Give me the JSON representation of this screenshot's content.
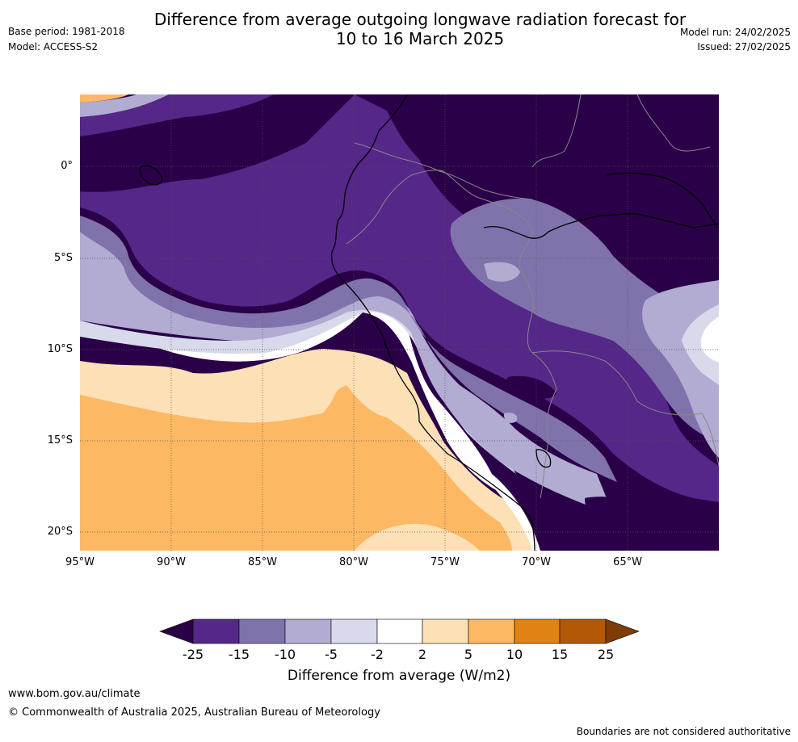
{
  "title": {
    "line1": "Difference from average outgoing longwave radiation forecast for",
    "line2": "10 to 16 March 2025"
  },
  "meta": {
    "base_period": "Base period: 1981-2018",
    "model": "Model: ACCESS-S2",
    "model_run": "Model run: 24/02/2025",
    "issued": "Issued: 27/02/2025"
  },
  "map": {
    "lat_labels": [
      "0°",
      "5°S",
      "10°S",
      "15°S",
      "20°S"
    ],
    "lon_labels": [
      "95°W",
      "90°W",
      "85°W",
      "80°W",
      "75°W",
      "70°W",
      "65°W"
    ],
    "colors": {
      "lt_-25": "#2a0048",
      "-25_-15": "#542788",
      "-15_-10": "#8073ac",
      "-10_-5": "#b2abd2",
      "-5_-2": "#d8daeb",
      "-2_2": "#ffffff",
      "2_5": "#fee0b6",
      "5_10": "#fdb863",
      "10_15": "#e08214",
      "15_25": "#b35806",
      "gt_25": "#7f3b08",
      "coast": "#000000",
      "border": "#888888",
      "grid": "#555555"
    }
  },
  "colorbar": {
    "ticks": [
      "-25",
      "-15",
      "-10",
      "-5",
      "-2",
      "2",
      "5",
      "10",
      "15",
      "25"
    ],
    "colors": [
      "#2a0048",
      "#542788",
      "#8073ac",
      "#b2abd2",
      "#d8daeb",
      "#ffffff",
      "#fee0b6",
      "#fdb863",
      "#e08214",
      "#b35806",
      "#7f3b08"
    ],
    "label": "Difference from average (W/m2)"
  },
  "footer": {
    "url": "www.bom.gov.au/climate",
    "copyright": "© Commonwealth of Australia 2025, Australian Bureau of Meteorology",
    "disclaimer": "Boundaries are not considered authoritative"
  }
}
